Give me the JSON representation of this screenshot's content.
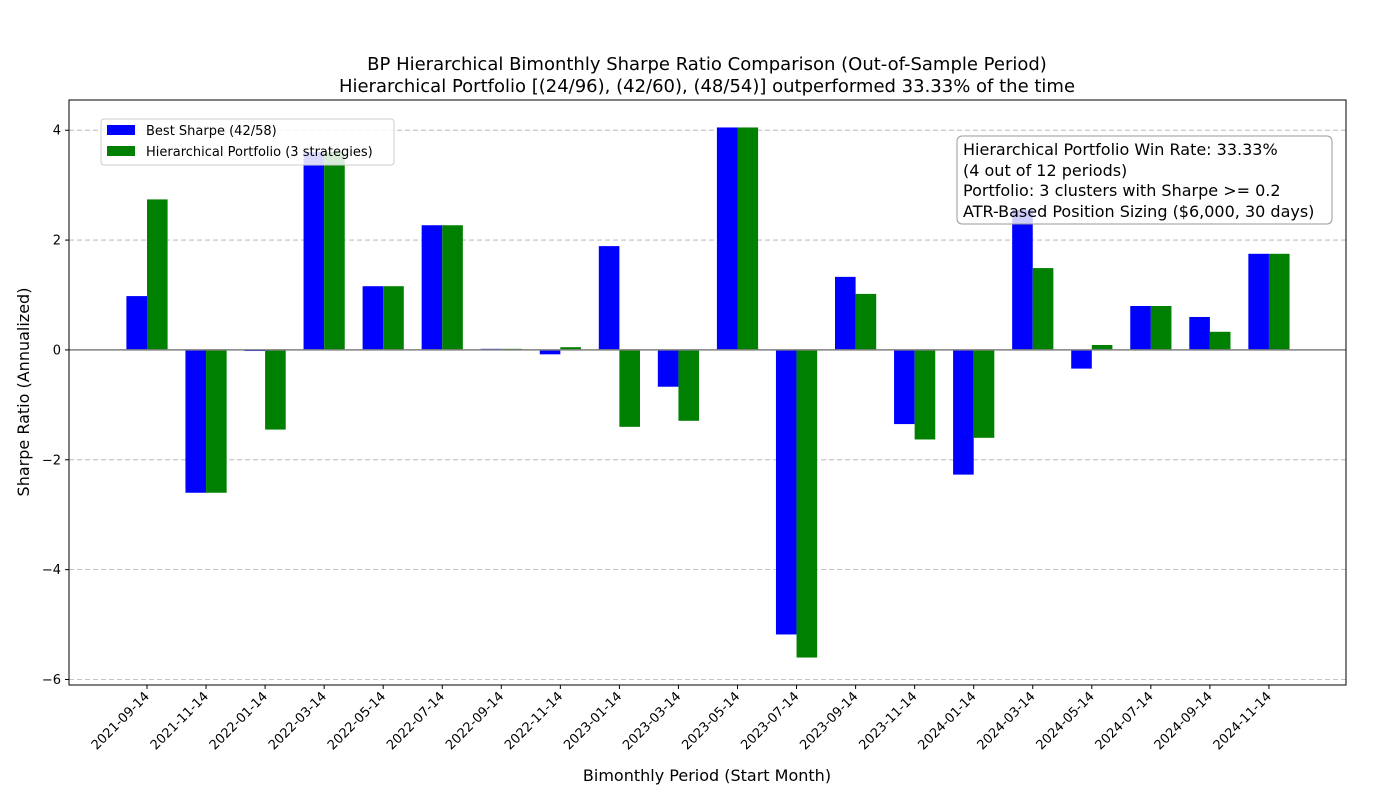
{
  "chart_data": {
    "type": "bar",
    "title": "BP Hierarchical Bimonthly Sharpe Ratio Comparison (Out-of-Sample Period)",
    "subtitle": "Hierarchical Portfolio [(24/96), (42/60), (48/54)] outperformed 33.33% of the time",
    "xlabel": "Bimonthly Period (Start Month)",
    "ylabel": "Sharpe Ratio (Annualized)",
    "ylim": [
      -6.1,
      4.55
    ],
    "yticks": [
      -6,
      -4,
      -2,
      0,
      2,
      4
    ],
    "ytick_labels": [
      "−6",
      "−4",
      "−2",
      "0",
      "2",
      "4"
    ],
    "grid": "horizontal dashed",
    "legend_position": "top-left",
    "categories": [
      "2021-09-14",
      "2021-11-14",
      "2022-01-14",
      "2022-03-14",
      "2022-05-14",
      "2022-07-14",
      "2022-09-14",
      "2022-11-14",
      "2023-01-14",
      "2023-03-14",
      "2023-05-14",
      "2023-07-14",
      "2023-09-14",
      "2023-11-14",
      "2024-01-14",
      "2024-03-14",
      "2024-05-14",
      "2024-07-14",
      "2024-09-14",
      "2024-11-14"
    ],
    "series": [
      {
        "name": "Best Sharpe (42/58)",
        "color": "#0000ff",
        "values": [
          0.98,
          -2.6,
          -0.02,
          3.6,
          1.16,
          2.27,
          0.02,
          -0.08,
          1.89,
          -0.67,
          4.05,
          -5.18,
          1.33,
          -1.35,
          -2.27,
          2.55,
          -0.34,
          0.8,
          0.6,
          1.75
        ]
      },
      {
        "name": "Hierarchical Portfolio (3 strategies)",
        "color": "#008000",
        "values": [
          2.74,
          -2.6,
          -1.45,
          3.6,
          1.16,
          2.27,
          0.02,
          0.05,
          -1.4,
          -1.29,
          4.05,
          -5.6,
          1.02,
          -1.63,
          -1.6,
          1.49,
          0.09,
          0.8,
          0.33,
          1.75
        ]
      }
    ],
    "annotation": [
      "Hierarchical Portfolio Win Rate: 33.33%",
      "(4 out of 12 periods)",
      "Portfolio: 3 clusters with Sharpe >= 0.2",
      "ATR-Based Position Sizing ($6,000, 30 days)"
    ]
  }
}
